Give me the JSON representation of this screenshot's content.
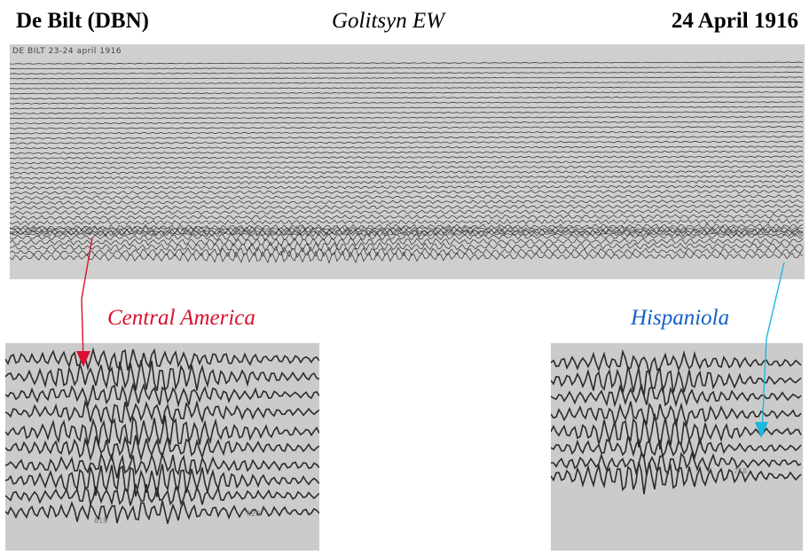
{
  "header": {
    "station": "De Bilt (DBN)",
    "instrument": "Golitsyn  EW",
    "date": "24 April 1916"
  },
  "record": {
    "handwritten_note": "DE BILT   23-24 april 1916"
  },
  "annotations": {
    "central_america": "Central America",
    "hispaniola": "Hispaniola"
  },
  "zoom_left": {
    "tick_labels": [
      "818",
      "820"
    ]
  },
  "zoom_right": {
    "tick_labels": [
      "718"
    ]
  },
  "colors": {
    "central_america_arrow": "#d8112f",
    "hispaniola_arrow": "#1ab8e0",
    "trace": "#2b2b2b",
    "paper": "#cfcfcf"
  }
}
